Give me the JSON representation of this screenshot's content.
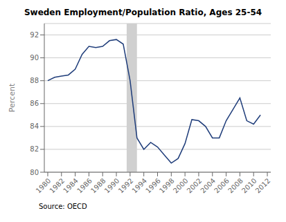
{
  "chart_data": {
    "type": "line",
    "title": "Sweden Employment/Population Ratio, Ages 25-54",
    "ylabel": "Percent",
    "source": "Source: OECD",
    "x": [
      1980,
      1981,
      1982,
      1983,
      1984,
      1985,
      1986,
      1987,
      1988,
      1989,
      1990,
      1991,
      1992,
      1993,
      1994,
      1995,
      1996,
      1997,
      1998,
      1999,
      2000,
      2001,
      2002,
      2003,
      2004,
      2005,
      2006,
      2007,
      2008,
      2009,
      2010,
      2011
    ],
    "values": [
      88.0,
      88.3,
      88.4,
      88.5,
      89.0,
      90.3,
      91.0,
      90.9,
      91.0,
      91.5,
      91.6,
      91.2,
      88.0,
      83.0,
      82.0,
      82.6,
      82.2,
      81.5,
      80.8,
      81.2,
      82.5,
      84.6,
      84.5,
      84.0,
      83.0,
      83.0,
      84.5,
      85.5,
      86.5,
      84.5,
      84.2,
      85.0
    ],
    "color": "#1f3d7a",
    "xlim": [
      1979.5,
      2012.5
    ],
    "ylim": [
      80,
      93
    ],
    "xticks": [
      1980,
      1982,
      1984,
      1986,
      1988,
      1990,
      1992,
      1994,
      1996,
      1998,
      2000,
      2002,
      2004,
      2006,
      2008,
      2010,
      2012
    ],
    "yticks": [
      80,
      82,
      84,
      86,
      88,
      90,
      92
    ],
    "grid": true,
    "shade": {
      "x0": 1991.5,
      "x1": 1993.0,
      "color": "#d0d0d0"
    }
  }
}
